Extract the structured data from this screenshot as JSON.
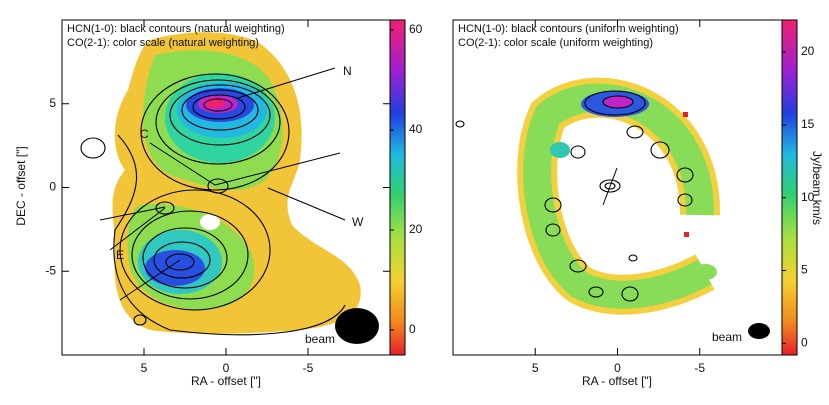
{
  "chart_data": [
    {
      "type": "map",
      "title": "HCN(1-0): black contours (natural weighting)",
      "subtitle": "CO(2-1): color scale (natural weighting)",
      "xlabel": "RA - offset [\"]",
      "ylabel": "DEC - offset [\"]",
      "xlim": [
        10,
        -10
      ],
      "ylim": [
        -10,
        10
      ],
      "xticks": [
        5,
        0,
        -5
      ],
      "yticks": [
        5,
        0,
        -5
      ],
      "colorbar": {
        "lim": [
          -5,
          62
        ],
        "ticks": [
          0,
          20,
          40,
          60
        ]
      },
      "annotations": [
        "N",
        "C",
        "W",
        "E",
        "beam"
      ]
    },
    {
      "type": "map",
      "title": "HCN(1-0): black contours (uniform weighting)",
      "subtitle": "CO(2-1): color scale (uniform weighting)",
      "xlabel": "RA - offset [\"]",
      "xlim": [
        10,
        -10
      ],
      "xticks": [
        5,
        0,
        -5
      ],
      "colorbar": {
        "label": "Jy/beam km/s",
        "lim": [
          -0.8,
          22.2
        ],
        "ticks": [
          0,
          5,
          10,
          15,
          20
        ]
      },
      "annotations": [
        "beam"
      ]
    }
  ]
}
